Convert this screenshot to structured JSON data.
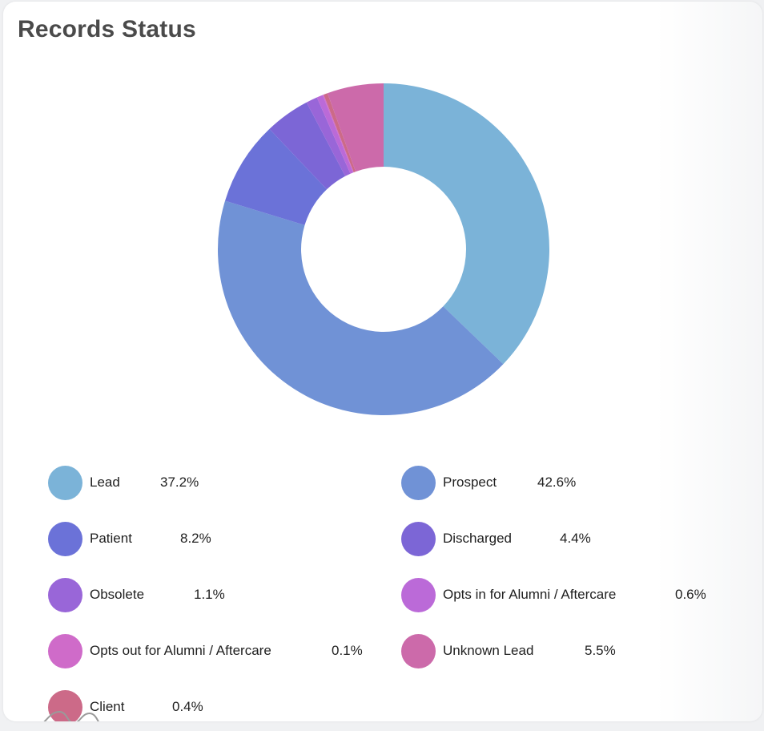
{
  "card": {
    "title": "Records Status"
  },
  "chart_data": {
    "type": "pie",
    "donut": true,
    "title": "Records Status",
    "legend_position": "bottom",
    "slices": [
      {
        "label": "Lead",
        "value": 37.2,
        "display": "37.2%",
        "color": "#7bb3d8"
      },
      {
        "label": "Prospect",
        "value": 42.6,
        "display": "42.6%",
        "color": "#7092d6"
      },
      {
        "label": "Patient",
        "value": 8.2,
        "display": "8.2%",
        "color": "#6b72d8"
      },
      {
        "label": "Discharged",
        "value": 4.4,
        "display": "4.4%",
        "color": "#7c66d6"
      },
      {
        "label": "Obsolete",
        "value": 1.1,
        "display": "1.1%",
        "color": "#9966d8"
      },
      {
        "label": "Opts in for Alumni / Aftercare",
        "value": 0.6,
        "display": "0.6%",
        "color": "#bb6ad8"
      },
      {
        "label": "Opts out for Alumni / Aftercare",
        "value": 0.1,
        "display": "0.1%",
        "color": "#cf6bc9"
      },
      {
        "label": "Unknown Lead",
        "value": 5.5,
        "display": "5.5%",
        "color": "#cc6aaa"
      },
      {
        "label": "Client",
        "value": 0.4,
        "display": "0.4%",
        "color": "#cc6a88"
      }
    ]
  },
  "colors": {
    "background": "#f0f1f3",
    "card": "#ffffff",
    "title": "#4a4a4a",
    "text": "#1f1f1f"
  }
}
